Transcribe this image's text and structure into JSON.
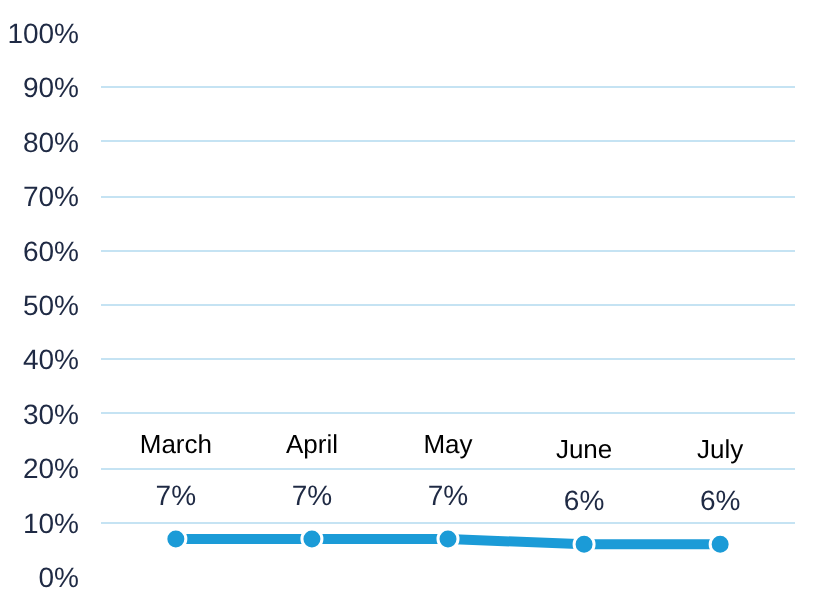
{
  "chart_data": {
    "type": "line",
    "categories": [
      "March",
      "April",
      "May",
      "June",
      "July"
    ],
    "series": [
      {
        "color": "#1b9bd7",
        "values": [
          7,
          7,
          7,
          6,
          6
        ]
      }
    ],
    "value_labels": [
      "7%",
      "7%",
      "7%",
      "6%",
      "6%"
    ],
    "ylim": [
      0,
      100
    ],
    "yticks": [
      {
        "value": 0,
        "label": "0%"
      },
      {
        "value": 10,
        "label": "10%"
      },
      {
        "value": 20,
        "label": "20%"
      },
      {
        "value": 30,
        "label": "30%"
      },
      {
        "value": 40,
        "label": "40%"
      },
      {
        "value": 50,
        "label": "50%"
      },
      {
        "value": 60,
        "label": "60%"
      },
      {
        "value": 70,
        "label": "70%"
      },
      {
        "value": 80,
        "label": "80%"
      },
      {
        "value": 90,
        "label": "90%"
      },
      {
        "value": 100,
        "label": "100%"
      }
    ],
    "grid": "y",
    "marker": "circle",
    "line_style": "solid",
    "tick_labels": "y"
  }
}
